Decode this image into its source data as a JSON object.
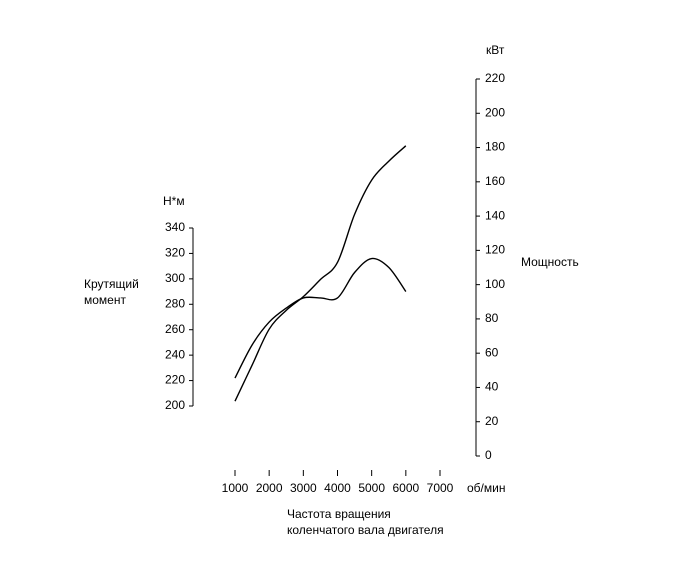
{
  "chart_data": {
    "type": "line",
    "ylabel": [
      "Крутящий",
      "момент"
    ],
    "yunit": "Н*м",
    "y2label": "Мощность",
    "y2unit": "кВт",
    "xlabel": [
      "Частота вращения",
      "коленчатого вала двигателя"
    ],
    "xunit": "об/мин",
    "x": [
      1000,
      1500,
      2000,
      2500,
      3000,
      3500,
      4000,
      4500,
      5000,
      5500,
      6000
    ],
    "series": [
      {
        "color": "#000000",
        "values": [
          222,
          248,
          266,
          277,
          285,
          285,
          285,
          305,
          316,
          309,
          290
        ]
      },
      {
        "color": "#000000",
        "axis": "y2",
        "values": [
          32,
          53,
          74,
          85,
          93,
          103,
          113,
          141,
          161,
          172,
          181
        ]
      }
    ],
    "xlim": [
      1000,
      7000
    ],
    "xticks": [
      1000,
      2000,
      3000,
      4000,
      5000,
      6000,
      7000
    ],
    "ylim": [
      200,
      340
    ],
    "yticks": [
      200,
      220,
      240,
      260,
      280,
      300,
      320,
      340
    ],
    "y2lim": [
      0,
      220
    ],
    "y2ticks": [
      0,
      20,
      40,
      60,
      80,
      100,
      120,
      140,
      160,
      180,
      200,
      220
    ]
  }
}
